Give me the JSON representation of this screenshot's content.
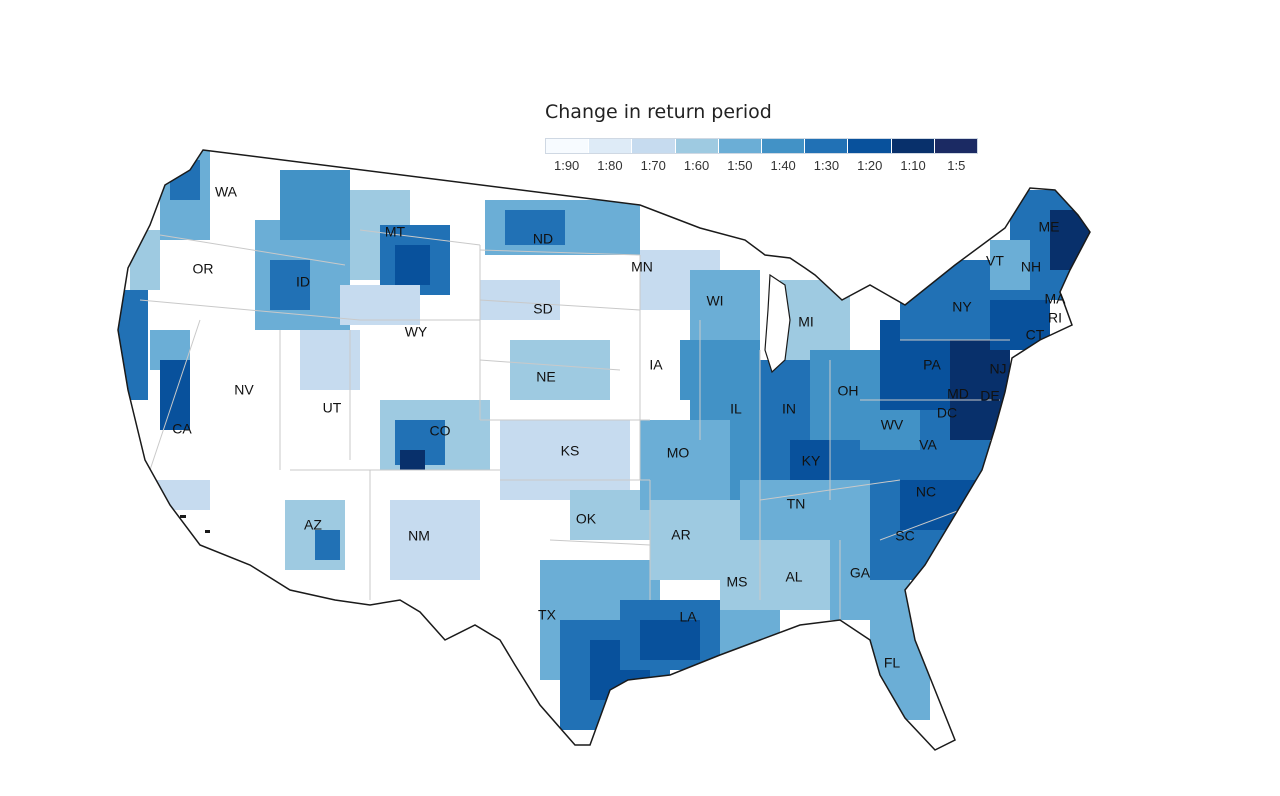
{
  "legend": {
    "title": "Change in return period",
    "tick_labels": [
      "1:90",
      "1:80",
      "1:70",
      "1:60",
      "1:50",
      "1:40",
      "1:30",
      "1:20",
      "1:10",
      "1:5"
    ],
    "colors": [
      "#f7fbff",
      "#deebf7",
      "#c6dbef",
      "#9ecae1",
      "#6baed6",
      "#4292c6",
      "#2171b5",
      "#08519c",
      "#08306b",
      "#1b2a63"
    ]
  },
  "state_labels": [
    "WA",
    "OR",
    "CA",
    "ID",
    "NV",
    "MT",
    "WY",
    "UT",
    "AZ",
    "CO",
    "NM",
    "ND",
    "SD",
    "NE",
    "KS",
    "OK",
    "TX",
    "MN",
    "IA",
    "MO",
    "AR",
    "LA",
    "WI",
    "IL",
    "MI",
    "IN",
    "OH",
    "KY",
    "TN",
    "MS",
    "AL",
    "GA",
    "FL",
    "SC",
    "NC",
    "VA",
    "WV",
    "PA",
    "NY",
    "VT",
    "NH",
    "ME",
    "MA",
    "RI",
    "CT",
    "NJ",
    "DE",
    "MD",
    "DC"
  ]
}
